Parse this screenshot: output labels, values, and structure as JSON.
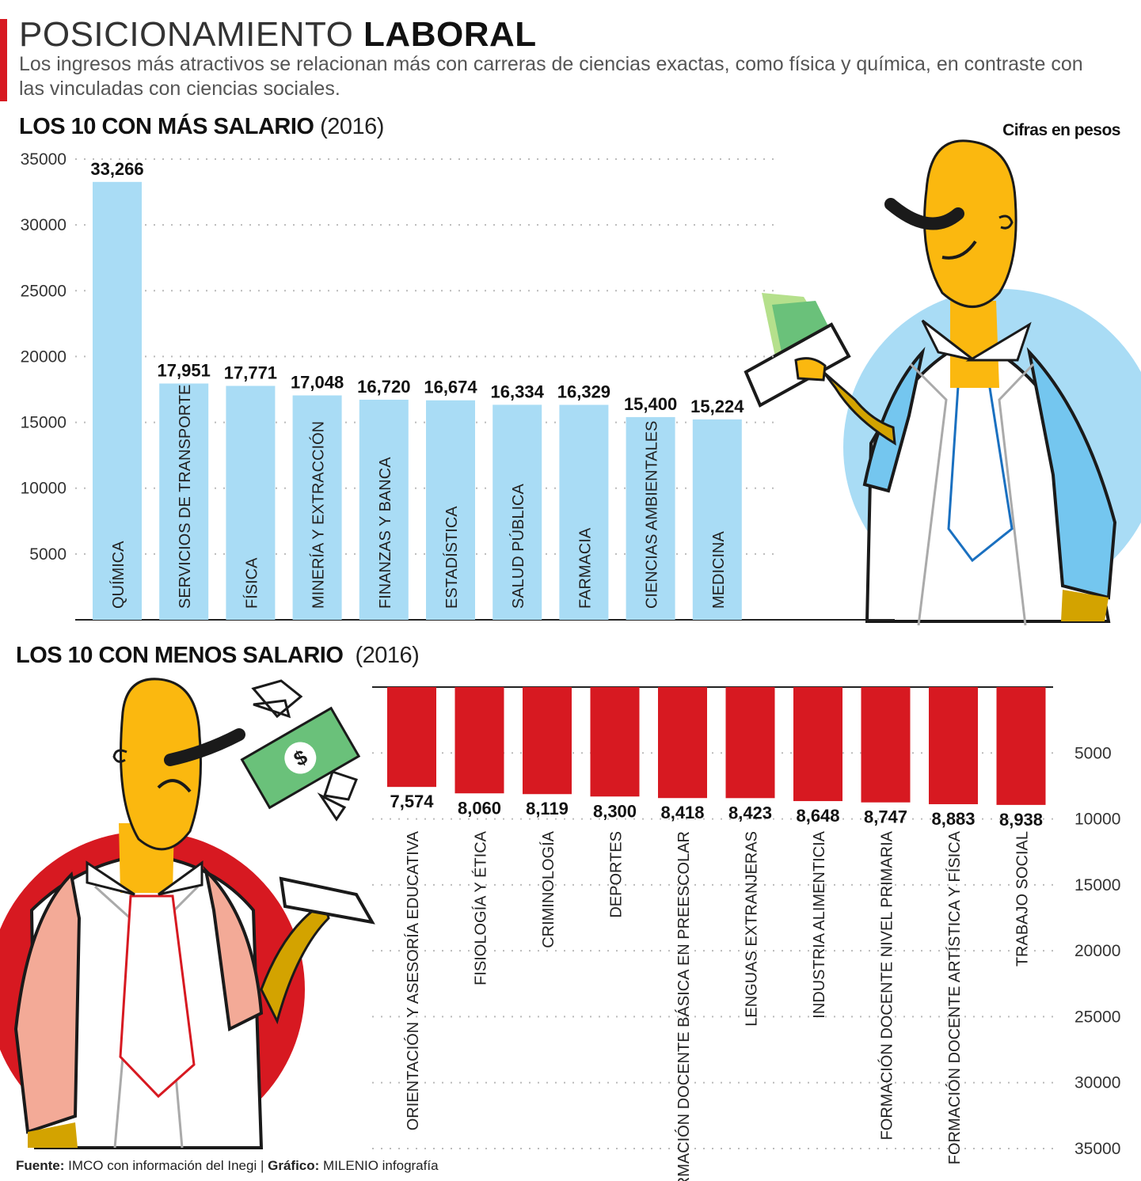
{
  "header": {
    "title_light": "POSICIONAMIENTO",
    "title_bold": "LABORAL",
    "subtitle": "Los ingresos más atractivos se relacionan más con carreras de ciencias exactas, como física y química, en contraste con las vinculadas con ciencias sociales.",
    "units_note": "Cifras en pesos"
  },
  "sections": {
    "top_title": "LOS 10 CON MÁS SALARIO",
    "top_year": "(2016)",
    "bottom_title": "LOS 10 CON MENOS SALARIO",
    "bottom_year": "(2016)"
  },
  "chart_data": [
    {
      "type": "bar",
      "title": "LOS 10 CON MÁS SALARIO (2016)",
      "orientation": "vertical",
      "color": "#a9dcf5",
      "categories": [
        "QUÍMICA",
        "SERVICIOS DE TRANSPORTE",
        "FÍSICA",
        "MINERÍA Y EXTRACCIÓN",
        "FINANZAS Y BANCA",
        "ESTADÍSTICA",
        "SALUD PÚBLICA",
        "FARMACIA",
        "CIENCIAS AMBIENTALES",
        "MEDICINA"
      ],
      "values": [
        33266,
        17951,
        17771,
        17048,
        16720,
        16674,
        16334,
        16329,
        15400,
        15224
      ],
      "labels": [
        "33,266",
        "17,951",
        "17,771",
        "17,048",
        "16,720",
        "16,674",
        "16,334",
        "16,329",
        "15,400",
        "15,224"
      ],
      "yticks": [
        "5000",
        "10000",
        "15000",
        "20000",
        "25000",
        "30000",
        "35000"
      ],
      "ylim": [
        0,
        35000
      ],
      "grid": "dotted"
    },
    {
      "type": "bar",
      "title": "LOS 10 CON MENOS SALARIO (2016)",
      "orientation": "vertical-inverted",
      "color": "#d71921",
      "categories": [
        "ORIENTACIÓN Y ASESORÍA EDUCATIVA",
        "FISIOLOGÍA Y ÉTICA",
        "CRIMINOLOGÍA",
        "DEPORTES",
        "FORMACIÓN DOCENTE BÁSICA EN PREESCOLAR",
        "LENGUAS EXTRANJERAS",
        "INDUSTRIA ALIMENTICIA",
        "FORMACIÓN DOCENTE NIVEL PRIMARIA",
        "FORMACIÓN DOCENTE ARTÍSTICA Y FÍSICA",
        "TRABAJO SOCIAL"
      ],
      "values": [
        7574,
        8060,
        8119,
        8300,
        8418,
        8423,
        8648,
        8747,
        8883,
        8938
      ],
      "labels": [
        "7,574",
        "8,060",
        "8,119",
        "8,300",
        "8,418",
        "8,423",
        "8,648",
        "8,747",
        "8,883",
        "8,938"
      ],
      "yticks": [
        "5000",
        "10000",
        "15000",
        "20000",
        "25000",
        "30000",
        "35000"
      ],
      "ylim": [
        0,
        35000
      ],
      "grid": "dotted"
    }
  ],
  "footer": {
    "source_label": "Fuente:",
    "source_text": "IMCO con información del Inegi |",
    "graphic_label": "Gráfico:",
    "graphic_text": "MILENIO infografía"
  }
}
